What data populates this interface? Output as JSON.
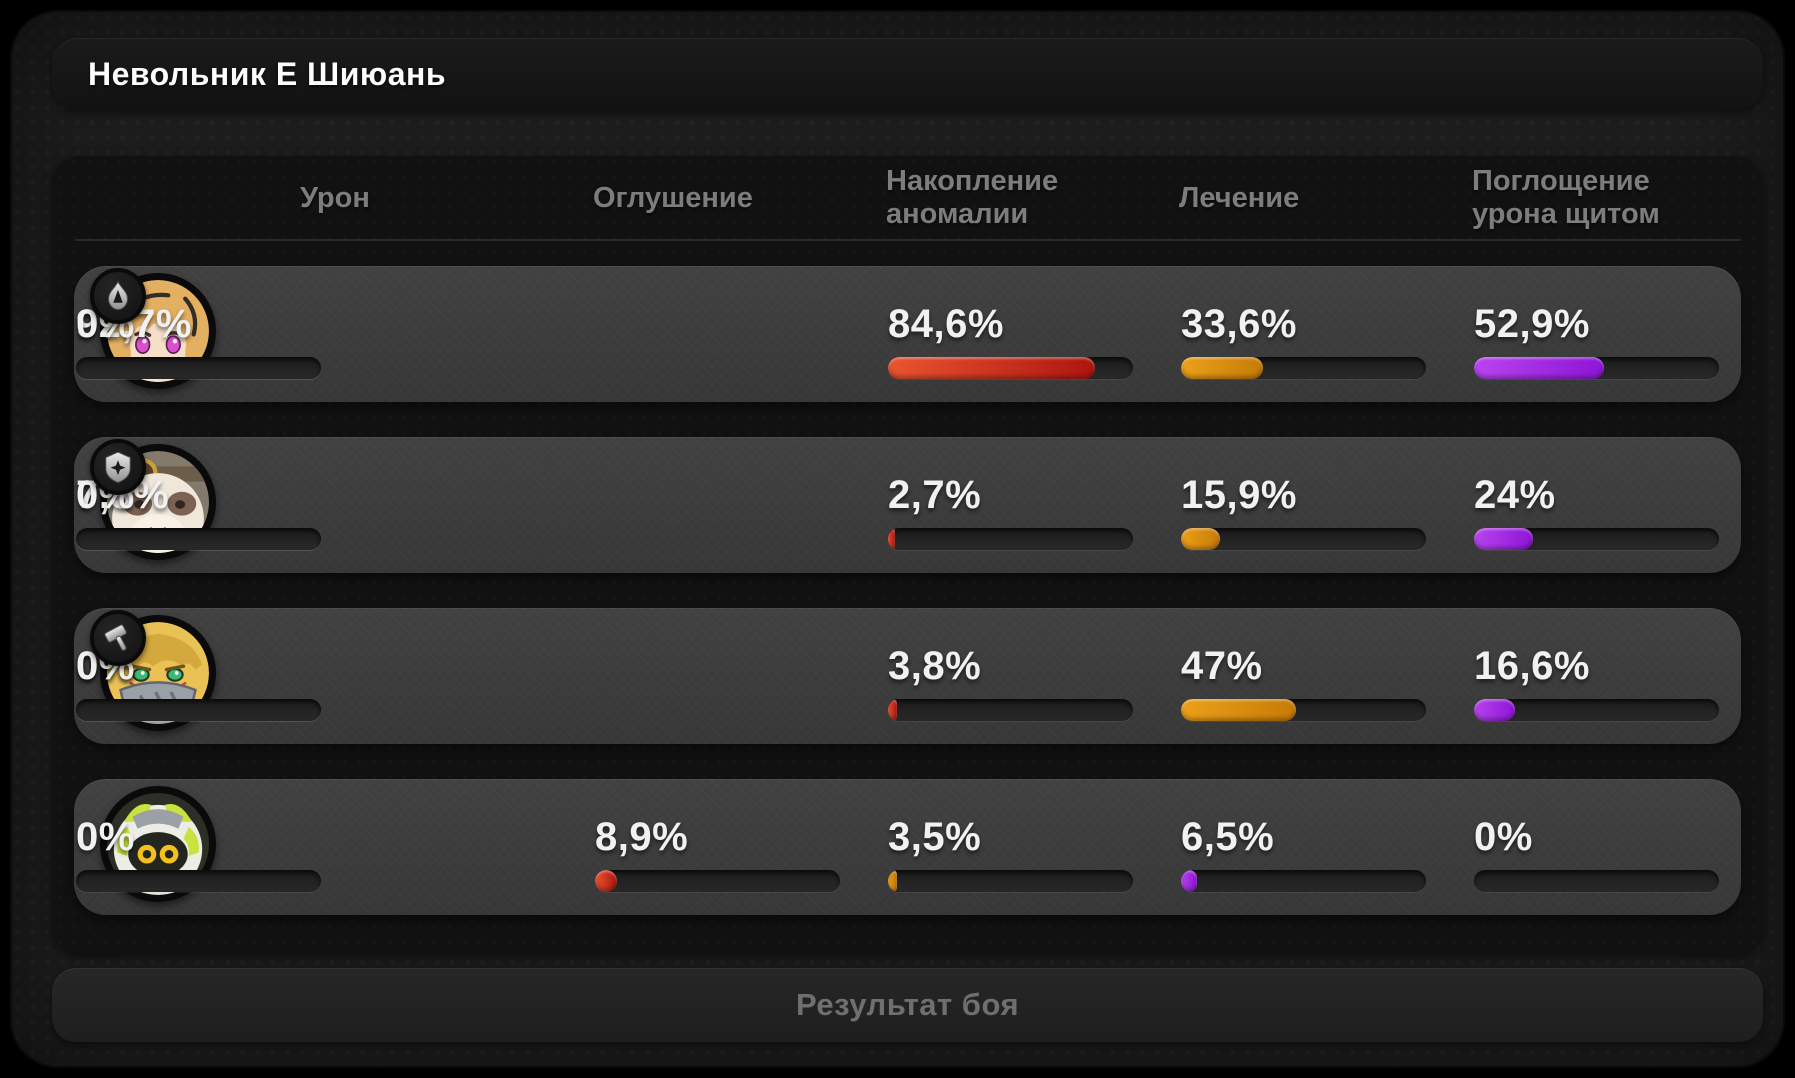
{
  "window": {
    "title": "Невольник Е Шиюань"
  },
  "table": {
    "columns": [
      "Урон",
      "Оглушение",
      "Накопление аномалии",
      "Лечение",
      "Поглощение урона щитом"
    ],
    "column_color_keys": [
      "damage",
      "stun",
      "anomaly",
      "heal",
      "shield"
    ],
    "rows": [
      {
        "avatar": "agent-avatar-blonde-pink-eyes",
        "badge": "anomaly-class-icon",
        "values": [
          "84,6%",
          "33,6%",
          "52,9%",
          "92,7%",
          "0%"
        ],
        "pcts": [
          84.6,
          33.6,
          52.9,
          92.7,
          0
        ]
      },
      {
        "avatar": "agent-avatar-bear-goggles",
        "badge": "defense-class-icon",
        "values": [
          "2,7%",
          "15,9%",
          "24%",
          "7,3%",
          "0%"
        ],
        "pcts": [
          2.7,
          15.9,
          24,
          7.3,
          0
        ]
      },
      {
        "avatar": "agent-avatar-blonde-mask",
        "badge": "stun-class-icon",
        "values": [
          "3,8%",
          "47%",
          "16,6%",
          "0%",
          "0%"
        ],
        "pcts": [
          3.8,
          47,
          16.6,
          0,
          0
        ]
      },
      {
        "avatar": "bangboo-avatar",
        "badge": null,
        "values": [
          "8,9%",
          "3,5%",
          "6,5%",
          "0%",
          "0%"
        ],
        "pcts": [
          8.9,
          3.5,
          6.5,
          0,
          0
        ]
      }
    ]
  },
  "bar_colors": {
    "damage": [
      "#ea5430",
      "#ae1510"
    ],
    "stun": [
      "#eca019",
      "#c67b07"
    ],
    "anomaly": [
      "#b944ef",
      "#8d15d6"
    ],
    "heal": [
      "#5ecf6d",
      "#16aa58"
    ],
    "shield": [
      "#3a3a3a",
      "#3a3a3a"
    ]
  },
  "footer": {
    "button_label": "Результат боя"
  }
}
